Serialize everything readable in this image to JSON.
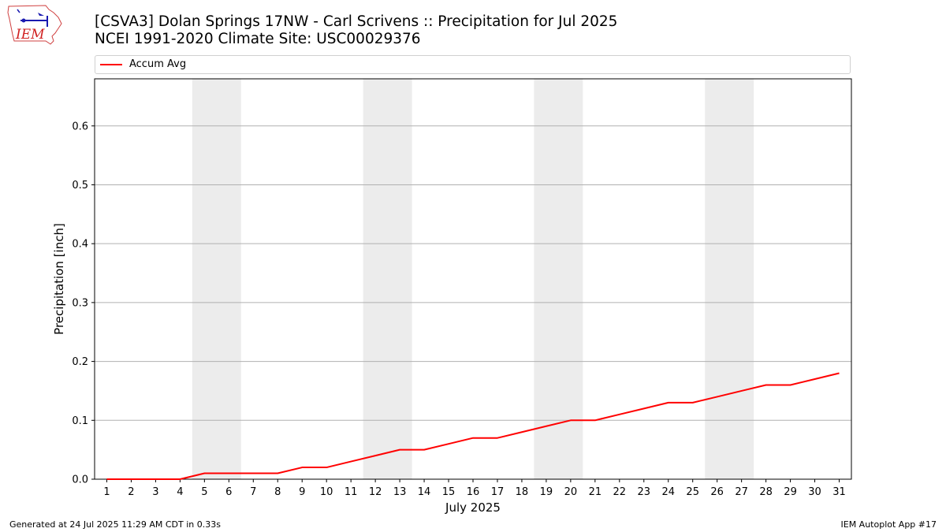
{
  "header": {
    "title_line1": "[CSVA3] Dolan Springs 17NW - Carl Scrivens :: Precipitation for Jul 2025",
    "title_line2": "NCEI 1991-2020 Climate Site: USC00029376",
    "logo_text": "IEM"
  },
  "chart_data": {
    "type": "line",
    "title": "[CSVA3] Dolan Springs 17NW - Carl Scrivens :: Precipitation for Jul 2025",
    "subtitle": "NCEI 1991-2020 Climate Site: USC00029376",
    "xlabel": "July 2025",
    "ylabel": "Precipitation [inch]",
    "x": [
      1,
      2,
      3,
      4,
      5,
      6,
      7,
      8,
      9,
      10,
      11,
      12,
      13,
      14,
      15,
      16,
      17,
      18,
      19,
      20,
      21,
      22,
      23,
      24,
      25,
      26,
      27,
      28,
      29,
      30,
      31
    ],
    "xlim": [
      0.5,
      31.5
    ],
    "ylim": [
      0,
      0.68
    ],
    "yticks": [
      0.0,
      0.1,
      0.2,
      0.3,
      0.4,
      0.5,
      0.6
    ],
    "ytick_labels": [
      "0.0",
      "0.1",
      "0.2",
      "0.3",
      "0.4",
      "0.5",
      "0.6"
    ],
    "grid": "horizontal",
    "legend_position": "top",
    "weekend_shading": [
      [
        4.5,
        6.5
      ],
      [
        11.5,
        13.5
      ],
      [
        18.5,
        20.5
      ],
      [
        25.5,
        27.5
      ]
    ],
    "shade_color": "#ececec",
    "series": [
      {
        "name": "Accum Avg",
        "color": "#ff0000",
        "values": [
          0.0,
          0.0,
          0.0,
          0.0,
          0.01,
          0.01,
          0.01,
          0.01,
          0.02,
          0.02,
          0.03,
          0.04,
          0.05,
          0.05,
          0.06,
          0.07,
          0.07,
          0.08,
          0.09,
          0.1,
          0.1,
          0.11,
          0.12,
          0.13,
          0.13,
          0.14,
          0.15,
          0.16,
          0.16,
          0.17,
          0.18
        ]
      }
    ]
  },
  "footer": {
    "generated": "Generated at 24 Jul 2025 11:29 AM CDT in 0.33s",
    "app": "IEM Autoplot App #17"
  }
}
